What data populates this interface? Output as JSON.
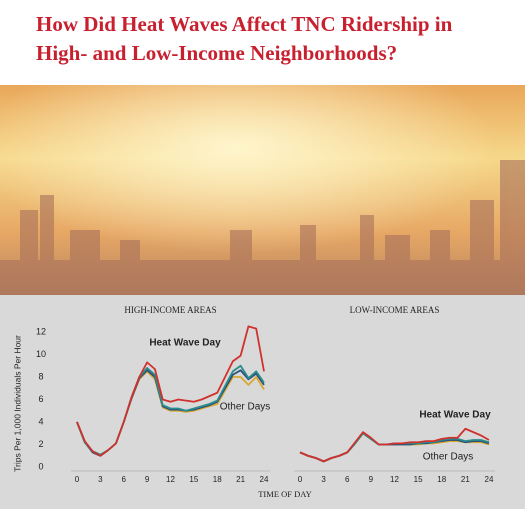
{
  "header": {
    "title": "How Did Heat Waves Affect TNC Ridership in High- and Low-Income Neighborhoods?"
  },
  "chart_data": [
    {
      "type": "line",
      "title": "HIGH-INCOME AREAS",
      "ylabel": "Trips Per 1,000 Individuals Per Hour",
      "xlabel": "TIME OF DAY",
      "x": [
        0,
        1,
        2,
        3,
        4,
        5,
        6,
        7,
        8,
        9,
        10,
        11,
        12,
        13,
        14,
        15,
        16,
        17,
        18,
        19,
        20,
        21,
        22,
        23,
        24
      ],
      "xlim": [
        0,
        24
      ],
      "xticks": [
        0,
        3,
        6,
        9,
        12,
        15,
        18,
        21,
        24
      ],
      "ylim": [
        0,
        12
      ],
      "yticks": [
        0,
        2,
        4,
        6,
        8,
        10,
        12
      ],
      "series": [
        {
          "name": "Other Days",
          "color": "#d9a830",
          "values": [
            4.0,
            2.2,
            1.3,
            1.0,
            1.5,
            2.1,
            4.0,
            6.1,
            7.8,
            8.5,
            7.8,
            5.3,
            5.0,
            5.0,
            4.9,
            5.0,
            5.2,
            5.4,
            5.6,
            6.8,
            8.0,
            8.0,
            7.3,
            8.0,
            6.9
          ]
        },
        {
          "name": null,
          "color": "#2b4e7a",
          "values": [
            4.0,
            2.2,
            1.3,
            1.0,
            1.5,
            2.1,
            4.0,
            6.1,
            7.9,
            8.6,
            8.0,
            5.4,
            5.1,
            5.1,
            5.0,
            5.1,
            5.3,
            5.5,
            5.8,
            7.0,
            8.2,
            8.6,
            7.8,
            8.3,
            7.3
          ]
        },
        {
          "name": null,
          "color": "#2a8c8c",
          "values": [
            4.0,
            2.2,
            1.4,
            1.1,
            1.5,
            2.1,
            4.0,
            6.2,
            8.0,
            8.8,
            8.2,
            5.5,
            5.2,
            5.2,
            5.0,
            5.2,
            5.4,
            5.6,
            5.9,
            7.2,
            8.5,
            9.0,
            7.9,
            8.5,
            7.5
          ]
        },
        {
          "name": "Heat Wave Day",
          "color": "#d0312d",
          "values": [
            4.0,
            2.3,
            1.4,
            1.0,
            1.5,
            2.1,
            4.0,
            6.2,
            8.0,
            9.3,
            8.7,
            6.0,
            5.8,
            6.0,
            5.9,
            5.8,
            6.0,
            6.3,
            6.6,
            8.0,
            9.4,
            9.9,
            12.5,
            12.3,
            8.5
          ]
        }
      ]
    },
    {
      "type": "line",
      "title": "LOW-INCOME AREAS",
      "x": [
        0,
        1,
        2,
        3,
        4,
        5,
        6,
        7,
        8,
        9,
        10,
        11,
        12,
        13,
        14,
        15,
        16,
        17,
        18,
        19,
        20,
        21,
        22,
        23,
        24
      ],
      "xlim": [
        0,
        24
      ],
      "xticks": [
        0,
        3,
        6,
        9,
        12,
        15,
        18,
        21,
        24
      ],
      "ylim": [
        0,
        12
      ],
      "series": [
        {
          "name": "Other Days",
          "color": "#d9a830",
          "values": [
            1.3,
            1.0,
            0.8,
            0.5,
            0.8,
            1.0,
            1.3,
            2.1,
            3.0,
            2.5,
            2.0,
            2.0,
            2.0,
            2.0,
            2.0,
            2.0,
            2.1,
            2.1,
            2.2,
            2.3,
            2.3,
            2.2,
            2.2,
            2.2,
            2.0
          ]
        },
        {
          "name": null,
          "color": "#2b4e7a",
          "values": [
            1.3,
            1.0,
            0.8,
            0.5,
            0.8,
            1.0,
            1.3,
            2.1,
            3.0,
            2.5,
            2.0,
            2.0,
            2.0,
            2.0,
            2.0,
            2.1,
            2.1,
            2.2,
            2.3,
            2.4,
            2.4,
            2.2,
            2.3,
            2.3,
            2.1
          ]
        },
        {
          "name": null,
          "color": "#2a8c8c",
          "values": [
            1.3,
            1.0,
            0.8,
            0.5,
            0.8,
            1.0,
            1.3,
            2.1,
            3.0,
            2.5,
            2.0,
            2.0,
            2.1,
            2.1,
            2.1,
            2.1,
            2.2,
            2.2,
            2.4,
            2.5,
            2.5,
            2.3,
            2.4,
            2.4,
            2.2
          ]
        },
        {
          "name": "Heat Wave Day",
          "color": "#d0312d",
          "values": [
            1.3,
            1.0,
            0.8,
            0.5,
            0.8,
            1.0,
            1.3,
            2.2,
            3.1,
            2.6,
            2.0,
            2.0,
            2.1,
            2.1,
            2.2,
            2.2,
            2.3,
            2.3,
            2.5,
            2.6,
            2.6,
            3.4,
            3.1,
            2.8,
            2.4
          ]
        }
      ]
    }
  ]
}
